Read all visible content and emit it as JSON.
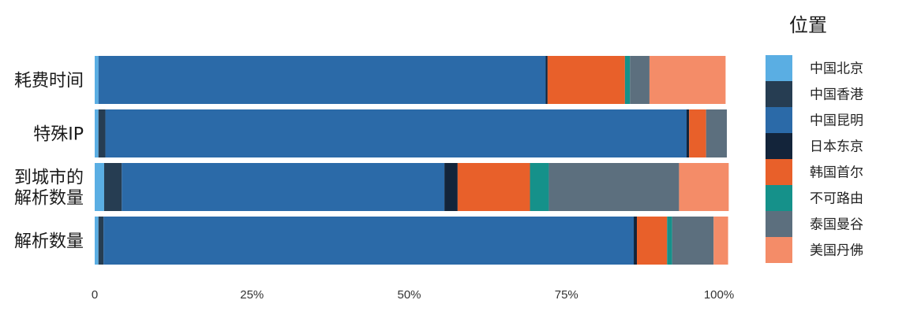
{
  "chart_data": {
    "type": "bar",
    "orientation": "horizontal",
    "stacked": "percent",
    "categories": [
      "耗费时间",
      "特殊IP",
      "到城市的\n解析数量",
      "解析数量"
    ],
    "series": [
      {
        "name": "中国北京",
        "color": "#5aaee3",
        "values": [
          0.6,
          0.6,
          1.5,
          0.6
        ]
      },
      {
        "name": "中国香港",
        "color": "#263d52",
        "values": [
          0.0,
          1.1,
          2.8,
          0.8
        ]
      },
      {
        "name": "中国昆明",
        "color": "#2b6aa8",
        "values": [
          71.1,
          92.4,
          51.3,
          84.3
        ]
      },
      {
        "name": "日本东京",
        "color": "#13243a",
        "values": [
          0.3,
          0.4,
          2.1,
          0.5
        ]
      },
      {
        "name": "韩国首尔",
        "color": "#e8602a",
        "values": [
          12.3,
          2.7,
          11.5,
          4.8
        ]
      },
      {
        "name": "不可路由",
        "color": "#15918a",
        "values": [
          0.8,
          0.0,
          3.0,
          0.8
        ]
      },
      {
        "name": "泰国曼谷",
        "color": "#5c6f7e",
        "values": [
          3.1,
          3.3,
          20.7,
          6.6
        ]
      },
      {
        "name": "美国丹佛",
        "color": "#f48c68",
        "values": [
          12.1,
          0.0,
          7.9,
          2.3
        ]
      }
    ],
    "x_ticks": [
      "0",
      "25%",
      "50%",
      "75%",
      "100%"
    ],
    "xlim": [
      0,
      100
    ],
    "legend": {
      "title": "位置",
      "placement": "right"
    },
    "grid": false
  }
}
